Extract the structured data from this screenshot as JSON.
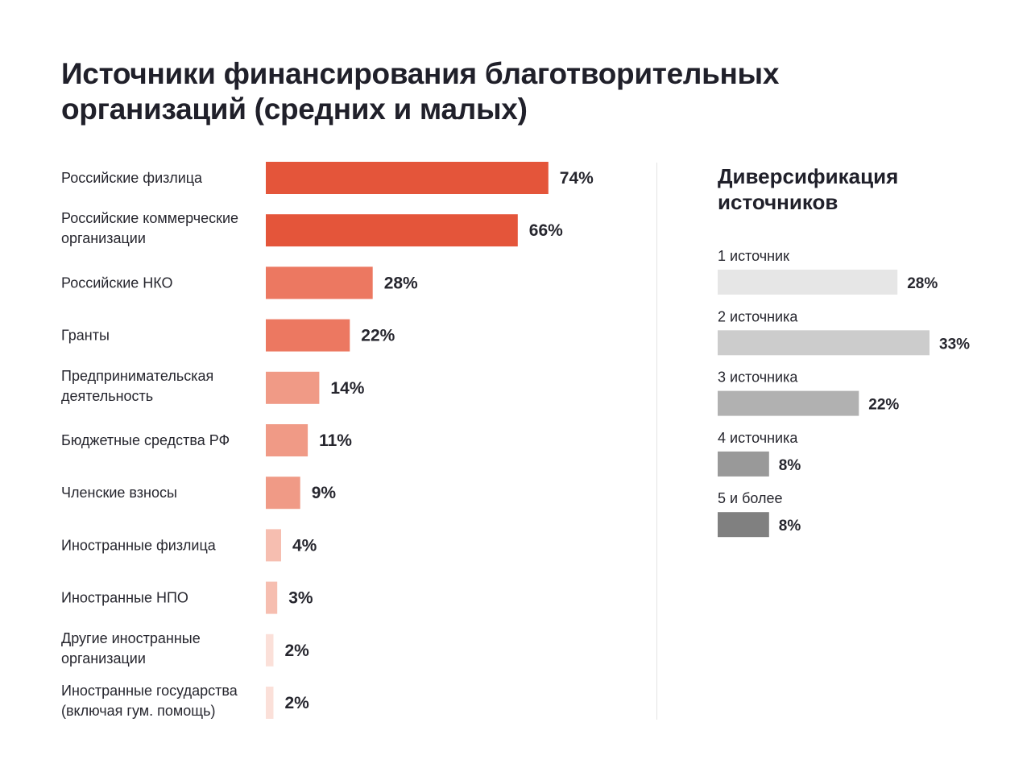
{
  "title_lines": [
    "Источники финансирования благотворительных",
    "организаций (средних и малых)"
  ],
  "chart_data": [
    {
      "type": "bar",
      "orientation": "horizontal",
      "title": "Источники финансирования благотворительных организаций (средних и малых)",
      "unit": "%",
      "xlim": [
        0,
        100
      ],
      "categories": [
        [
          "Российские физлица"
        ],
        [
          "Российские коммерческие",
          "организации"
        ],
        [
          "Российские НКО"
        ],
        [
          "Гранты"
        ],
        [
          "Предпринимательская",
          "деятельность"
        ],
        [
          "Бюджетные средства РФ"
        ],
        [
          "Членские взносы"
        ],
        [
          "Иностранные физлица"
        ],
        [
          "Иностранные НПО"
        ],
        [
          "Другие иностранные",
          "организации"
        ],
        [
          "Иностранные государства",
          "(включая гум. помощь)"
        ]
      ],
      "values": [
        74,
        66,
        28,
        22,
        14,
        11,
        9,
        4,
        3,
        2,
        2
      ],
      "value_labels": [
        "74%",
        "66%",
        "28%",
        "22%",
        "14%",
        "11%",
        "9%",
        "4%",
        "3%",
        "2%",
        "2%"
      ],
      "colors": [
        "#e4553a",
        "#e4553a",
        "#ec7861",
        "#ec7861",
        "#f09a86",
        "#f09a86",
        "#f09a86",
        "#f6beb0",
        "#f6beb0",
        "#fbe0d9",
        "#fbe0d9"
      ]
    },
    {
      "type": "bar",
      "orientation": "horizontal",
      "title": "Диверсификация источников",
      "unit": "%",
      "xlim": [
        0,
        40
      ],
      "categories": [
        "1 источник",
        "2 источника",
        "3 источника",
        "4 источника",
        "5 и более"
      ],
      "values": [
        28,
        33,
        22,
        8,
        8
      ],
      "value_labels": [
        "28%",
        "33%",
        "22%",
        "8%",
        "8%"
      ],
      "colors": [
        "#e6e6e6",
        "#cccccc",
        "#b1b1b1",
        "#999999",
        "#808080"
      ]
    }
  ],
  "right_title_lines": [
    "Диверсификация",
    "источников"
  ]
}
